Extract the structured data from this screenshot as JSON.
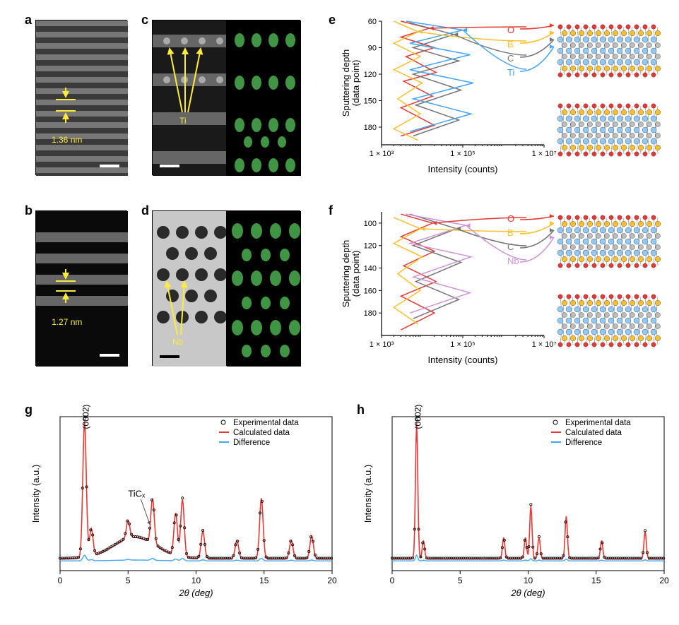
{
  "panels": {
    "a": {
      "label": "a",
      "measurement": "1.36 nm"
    },
    "b": {
      "label": "b",
      "measurement": "1.27 nm"
    },
    "c": {
      "label": "c",
      "element": "Ti"
    },
    "d": {
      "label": "d",
      "element": "Nb"
    },
    "e": {
      "label": "e"
    },
    "f": {
      "label": "f"
    },
    "g": {
      "label": "g"
    },
    "h": {
      "label": "h"
    }
  },
  "chart_e": {
    "type": "line",
    "xlabel": "Intensity (counts)",
    "ylabel": "Sputtering depth\n(data point)",
    "ylabel_line1": "Sputtering depth",
    "ylabel_line2": "(data point)",
    "xscale": "log",
    "xlim": [
      1000,
      10000000
    ],
    "xticks": [
      "1 × 10³",
      "1 × 10⁵",
      "1 × 10⁷"
    ],
    "ylim": [
      200,
      60
    ],
    "yticks": [
      60,
      90,
      120,
      150,
      180
    ],
    "elements": [
      {
        "name": "O",
        "color": "#e53935"
      },
      {
        "name": "B",
        "color": "#fbc02d"
      },
      {
        "name": "C",
        "color": "#757575"
      },
      {
        "name": "Ti",
        "color": "#42a5f5"
      }
    ],
    "series": {
      "O": [
        [
          3000,
          60
        ],
        [
          15000,
          68
        ],
        [
          3000,
          78
        ],
        [
          20000,
          90
        ],
        [
          4000,
          100
        ],
        [
          22000,
          118
        ],
        [
          3500,
          128
        ],
        [
          18000,
          145
        ],
        [
          3000,
          158
        ],
        [
          20000,
          178
        ],
        [
          3000,
          190
        ]
      ],
      "B": [
        [
          2000,
          60
        ],
        [
          8000,
          72
        ],
        [
          2000,
          85
        ],
        [
          9000,
          100
        ],
        [
          2000,
          115
        ],
        [
          10000,
          130
        ],
        [
          2500,
          148
        ],
        [
          9000,
          165
        ],
        [
          2000,
          182
        ],
        [
          8000,
          195
        ]
      ],
      "C": [
        [
          5000,
          62
        ],
        [
          60000,
          75
        ],
        [
          6000,
          90
        ],
        [
          80000,
          105
        ],
        [
          6000,
          120
        ],
        [
          90000,
          138
        ],
        [
          7000,
          155
        ],
        [
          80000,
          172
        ],
        [
          6000,
          190
        ]
      ],
      "Ti": [
        [
          4000,
          60
        ],
        [
          100000,
          70
        ],
        [
          5000,
          85
        ],
        [
          150000,
          98
        ],
        [
          5000,
          115
        ],
        [
          180000,
          130
        ],
        [
          6000,
          148
        ],
        [
          160000,
          165
        ],
        [
          5000,
          185
        ]
      ]
    },
    "background_color": "#ffffff",
    "line_width": 1.5
  },
  "chart_f": {
    "type": "line",
    "xlabel": "Intensity (counts)",
    "ylabel_line1": "Sputtering depth",
    "ylabel_line2": "(data point)",
    "xscale": "log",
    "xlim": [
      1000,
      10000000
    ],
    "xticks": [
      "1 × 10³",
      "1 × 10⁵",
      "1 × 10⁷"
    ],
    "ylim": [
      200,
      90
    ],
    "yticks": [
      100,
      120,
      140,
      160,
      180
    ],
    "elements": [
      {
        "name": "O",
        "color": "#e53935"
      },
      {
        "name": "B",
        "color": "#fbc02d"
      },
      {
        "name": "C",
        "color": "#757575"
      },
      {
        "name": "Nb",
        "color": "#ce93d8"
      }
    ],
    "series": {
      "O": [
        [
          3000,
          92
        ],
        [
          18000,
          100
        ],
        [
          3000,
          112
        ],
        [
          20000,
          125
        ],
        [
          3500,
          138
        ],
        [
          22000,
          152
        ],
        [
          3000,
          165
        ],
        [
          20000,
          180
        ],
        [
          3000,
          195
        ]
      ],
      "B": [
        [
          2000,
          95
        ],
        [
          9000,
          105
        ],
        [
          2000,
          118
        ],
        [
          10000,
          130
        ],
        [
          2500,
          145
        ],
        [
          9000,
          160
        ],
        [
          2000,
          175
        ],
        [
          8000,
          190
        ]
      ],
      "C": [
        [
          5000,
          92
        ],
        [
          70000,
          105
        ],
        [
          6000,
          120
        ],
        [
          90000,
          135
        ],
        [
          7000,
          152
        ],
        [
          80000,
          168
        ],
        [
          6000,
          185
        ]
      ],
      "Nb": [
        [
          4000,
          92
        ],
        [
          120000,
          102
        ],
        [
          5000,
          118
        ],
        [
          160000,
          130
        ],
        [
          6000,
          148
        ],
        [
          150000,
          162
        ],
        [
          5000,
          180
        ]
      ]
    },
    "background_color": "#ffffff",
    "line_width": 1.5
  },
  "chart_g": {
    "type": "xrd",
    "xlabel": "2θ (deg)",
    "ylabel": "Intensity (a.u.)",
    "xlim": [
      0,
      20
    ],
    "xticks": [
      0,
      5,
      10,
      15,
      20
    ],
    "peak_label": "(0002)",
    "inset_label": "TiCₓ",
    "legend": [
      {
        "label": "Experimental data",
        "marker": "circle",
        "color": "#000000"
      },
      {
        "label": "Calculated data",
        "marker": "line",
        "color": "#e53935"
      },
      {
        "label": "Difference",
        "marker": "line",
        "color": "#42a5f5"
      }
    ],
    "exp_color": "#000000",
    "calc_color": "#e53935",
    "diff_color": "#42a5f5",
    "background_color": "#ffffff",
    "line_width": 1.5,
    "marker_size": 3
  },
  "chart_h": {
    "type": "xrd",
    "xlabel": "2θ (deg)",
    "ylabel": "Intensity (a.u.)",
    "xlim": [
      0,
      20
    ],
    "xticks": [
      0,
      5,
      10,
      15,
      20
    ],
    "peak_label": "(0002)",
    "legend": [
      {
        "label": "Experimental data",
        "marker": "circle",
        "color": "#000000"
      },
      {
        "label": "Calculated data",
        "marker": "line",
        "color": "#e53935"
      },
      {
        "label": "Difference",
        "marker": "line",
        "color": "#42a5f5"
      }
    ],
    "exp_color": "#000000",
    "calc_color": "#e53935",
    "diff_color": "#42a5f5",
    "background_color": "#ffffff",
    "line_width": 1.5,
    "marker_size": 3
  },
  "atom_colors": {
    "red": "#e53935",
    "yellow": "#fbc02d",
    "blue": "#90caf9",
    "gray": "#bdbdbd"
  }
}
